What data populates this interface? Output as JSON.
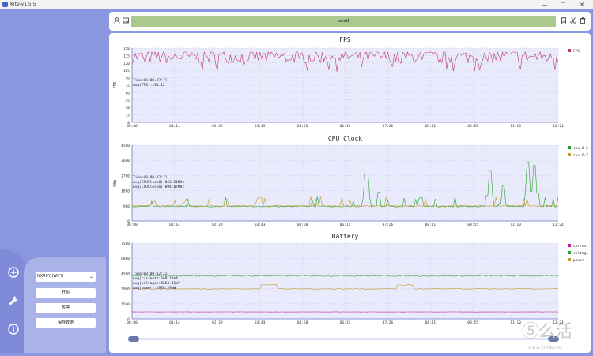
{
  "window": {
    "title": "Kite-v1.5.5",
    "minimize": "—",
    "maximize": "☐",
    "close": "✕"
  },
  "header": {
    "label": "label1"
  },
  "side": {
    "device": "NXR0YJ(WIFI)",
    "btn_start": "开始",
    "btn_pause": "暂停",
    "btn_save": "保存数据"
  },
  "time_ticks": [
    "00:00",
    "01:14",
    "02:29",
    "03:43",
    "04:58",
    "06:12",
    "07:26",
    "08:41",
    "09:55",
    "11:10",
    "12:24"
  ],
  "chart_data": [
    {
      "type": "line",
      "title": "FPS",
      "ylabel": "FPS",
      "ylim": [
        0,
        150
      ],
      "yticks": [
        0,
        15,
        30,
        45,
        60,
        75,
        90,
        105,
        120,
        135,
        150
      ],
      "ytick_labels": [
        "0",
        "15",
        "30",
        "45",
        "60",
        "75",
        "90",
        "105",
        "120",
        "135",
        "150"
      ],
      "series": [
        {
          "name": "FPS",
          "color": "#c0386a",
          "mean": 134.12,
          "spread": 14
        }
      ],
      "annotations": [
        "Time:00:00-12:21",
        "Avg(FPS):134.12"
      ],
      "legend": "top-right"
    },
    {
      "type": "line",
      "title": "CPU Clock",
      "ylabel": "MHz",
      "ylim": [
        0,
        4500
      ],
      "yticks": [
        0,
        900,
        1800,
        2700,
        3600,
        4500
      ],
      "ytick_labels": [
        "0",
        "900",
        "1800",
        "2700",
        "3600",
        "4500"
      ],
      "series": [
        {
          "name": "cpu 0-5",
          "color": "#2aa12a",
          "base": 864,
          "spikes": [
            [
              0.84,
              3000
            ],
            [
              0.87,
              2100
            ],
            [
              0.93,
              3500
            ],
            [
              0.945,
              3300
            ],
            [
              0.55,
              2800
            ],
            [
              0.58,
              1700
            ],
            [
              0.68,
              1400
            ]
          ]
        },
        {
          "name": "cpu 6-7",
          "color": "#c89a2a",
          "base": 894,
          "spikes": [
            [
              0.22,
              1300
            ],
            [
              0.3,
              1400
            ],
            [
              0.05,
              1100
            ],
            [
              0.12,
              1100
            ]
          ]
        }
      ],
      "annotations": [
        "Time:00:00-12:21",
        "Avg(CPUClock0):863.51MHz",
        "Avg(CPUClock6):894.07MHz"
      ],
      "legend": "top-right"
    },
    {
      "type": "line",
      "title": "Battery",
      "ylabel": "",
      "ylim": [
        0,
        7500
      ],
      "yticks": [
        0,
        1500,
        3000,
        4500,
        6000,
        7500
      ],
      "ytick_labels": [
        "0",
        "1500",
        "3000",
        "4500",
        "6000",
        "7500"
      ],
      "series": [
        {
          "name": "current",
          "color": "#c020a0",
          "value": 698
        },
        {
          "name": "voltage",
          "color": "#2aa12a",
          "value": 4263
        },
        {
          "name": "power",
          "color": "#c89a2a",
          "value": 2976
        }
      ],
      "annotations": [
        "Time:00:00-12:21",
        "Avg(current):698.11mA",
        "Avg(voltage):4263.41mV",
        "Avg(power):2976.29mW"
      ],
      "legend": "top-right"
    }
  ],
  "watermark": {
    "text": "⑤么活",
    "sub": "www.5itifa.net"
  },
  "colors": {
    "background": "#8a96e0",
    "plot_bg": "#e9eafb",
    "header_label": "#a9c98e"
  },
  "icons": {
    "person": "person-icon",
    "image": "image-icon",
    "bookmark": "bookmark-icon",
    "cut": "scissors-icon",
    "trash": "trash-icon",
    "add": "add-icon",
    "tool": "wrench-icon",
    "info": "info-icon"
  }
}
